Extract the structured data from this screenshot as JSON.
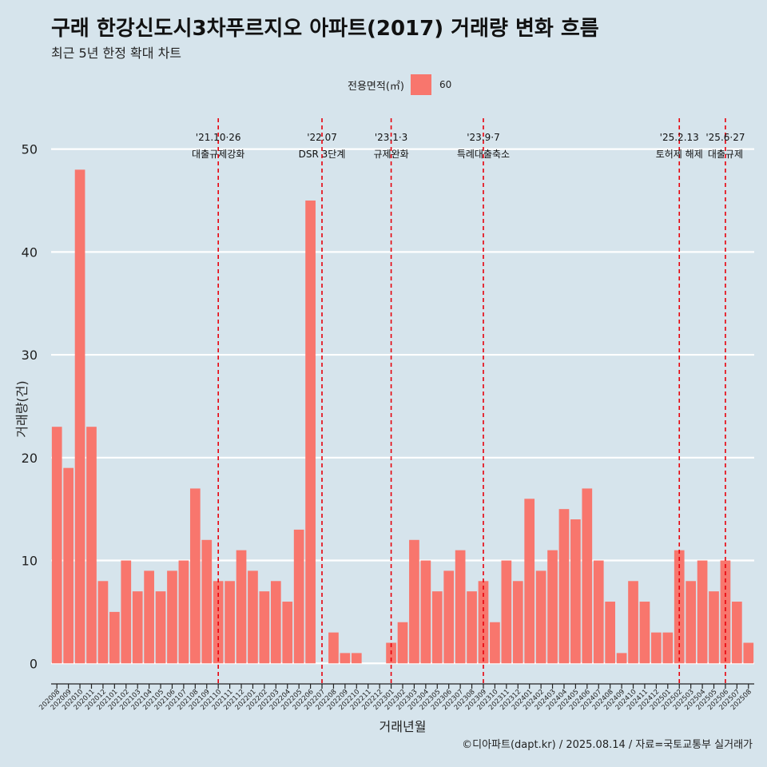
{
  "chart_data": {
    "type": "bar",
    "title": "구래 한강신도시3차푸르지오 아파트(2017) 거래량 변화 흐름",
    "subtitle": "최근 5년 한정 확대 차트",
    "xlabel": "거래년월",
    "ylabel": "거래량(건)",
    "ylim": [
      -2,
      53
    ],
    "yticks": [
      0,
      10,
      20,
      30,
      40,
      50
    ],
    "grid": true,
    "legend": {
      "title": "전용면적(㎡)",
      "position": "top",
      "items": [
        {
          "label": "60",
          "color": "#f8766d"
        }
      ]
    },
    "series": [
      {
        "name": "60",
        "color": "#f8766d",
        "values": [
          23,
          19,
          48,
          23,
          8,
          5,
          10,
          7,
          9,
          7,
          9,
          10,
          17,
          12,
          8,
          8,
          11,
          9,
          7,
          8,
          6,
          13,
          45,
          0,
          3,
          1,
          1,
          0,
          0,
          2,
          4,
          12,
          10,
          7,
          9,
          11,
          7,
          8,
          4,
          10,
          8,
          16,
          9,
          11,
          15,
          14,
          17,
          10,
          6,
          1,
          8,
          6,
          3,
          3,
          11,
          8,
          10,
          7,
          10,
          6,
          2
        ]
      }
    ],
    "categories": [
      "202008",
      "202009",
      "202010",
      "202011",
      "202012",
      "202101",
      "202102",
      "202103",
      "202104",
      "202105",
      "202106",
      "202107",
      "202108",
      "202109",
      "202110",
      "202111",
      "202112",
      "202201",
      "202202",
      "202203",
      "202204",
      "202205",
      "202206",
      "202207",
      "202208",
      "202209",
      "202210",
      "202211",
      "202212",
      "202301",
      "202302",
      "202303",
      "202304",
      "202305",
      "202306",
      "202307",
      "202308",
      "202309",
      "202310",
      "202311",
      "202312",
      "202401",
      "202402",
      "202403",
      "202404",
      "202405",
      "202406",
      "202407",
      "202408",
      "202409",
      "202410",
      "202411",
      "202412",
      "202501",
      "202502",
      "202503",
      "202504",
      "202505",
      "202506",
      "202507",
      "202508"
    ],
    "annotations": [
      {
        "x": "202110",
        "date": "'21.10·26",
        "label": "대출규제강화"
      },
      {
        "x": "202207",
        "date": "'22.07",
        "label": "DSR 3단계"
      },
      {
        "x": "202301",
        "date": "'23.1·3",
        "label": "규제완화"
      },
      {
        "x": "202309",
        "date": "'23.9·7",
        "label": "특례대출축소"
      },
      {
        "x": "202502",
        "date": "'25.2.13",
        "label": "토허제 해제"
      },
      {
        "x": "202506",
        "date": "'25.6·27",
        "label": "대출규제"
      }
    ],
    "annotation_color": "#e8000b"
  },
  "caption": "©디아파트(dapt.kr) / 2025.08.14 / 자료=국토교통부 실거래가"
}
